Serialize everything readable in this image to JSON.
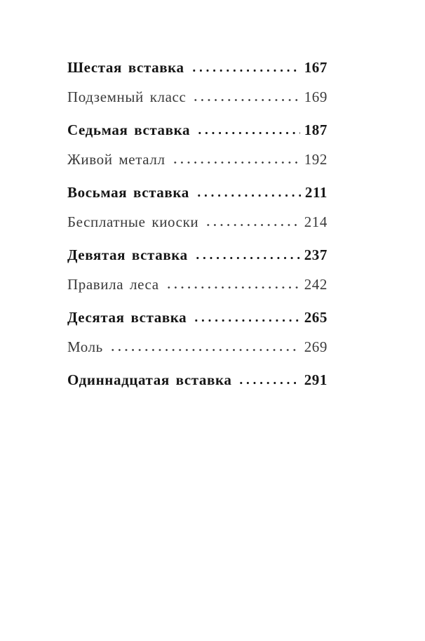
{
  "page": {
    "background_color": "#ffffff",
    "regular_text_color": "#3a3a3a",
    "bold_text_color": "#161616"
  },
  "toc": {
    "entries": [
      {
        "label": "Шестая вставка",
        "page": "167",
        "level": "chapter"
      },
      {
        "label": "Подземный класс",
        "page": "169",
        "level": "section"
      },
      {
        "label": "Седьмая вставка",
        "page": "187",
        "level": "chapter"
      },
      {
        "label": "Живой металл",
        "page": "192",
        "level": "section"
      },
      {
        "label": "Восьмая вставка",
        "page": "211",
        "level": "chapter"
      },
      {
        "label": "Бесплатные киоски",
        "page": "214",
        "level": "section"
      },
      {
        "label": "Девятая вставка",
        "page": "237",
        "level": "chapter"
      },
      {
        "label": "Правила леса",
        "page": "242",
        "level": "section"
      },
      {
        "label": "Десятая вставка",
        "page": "265",
        "level": "chapter"
      },
      {
        "label": "Моль",
        "page": "269",
        "level": "section"
      },
      {
        "label": "Одиннадцатая вставка",
        "page": "291",
        "level": "chapter"
      }
    ]
  }
}
